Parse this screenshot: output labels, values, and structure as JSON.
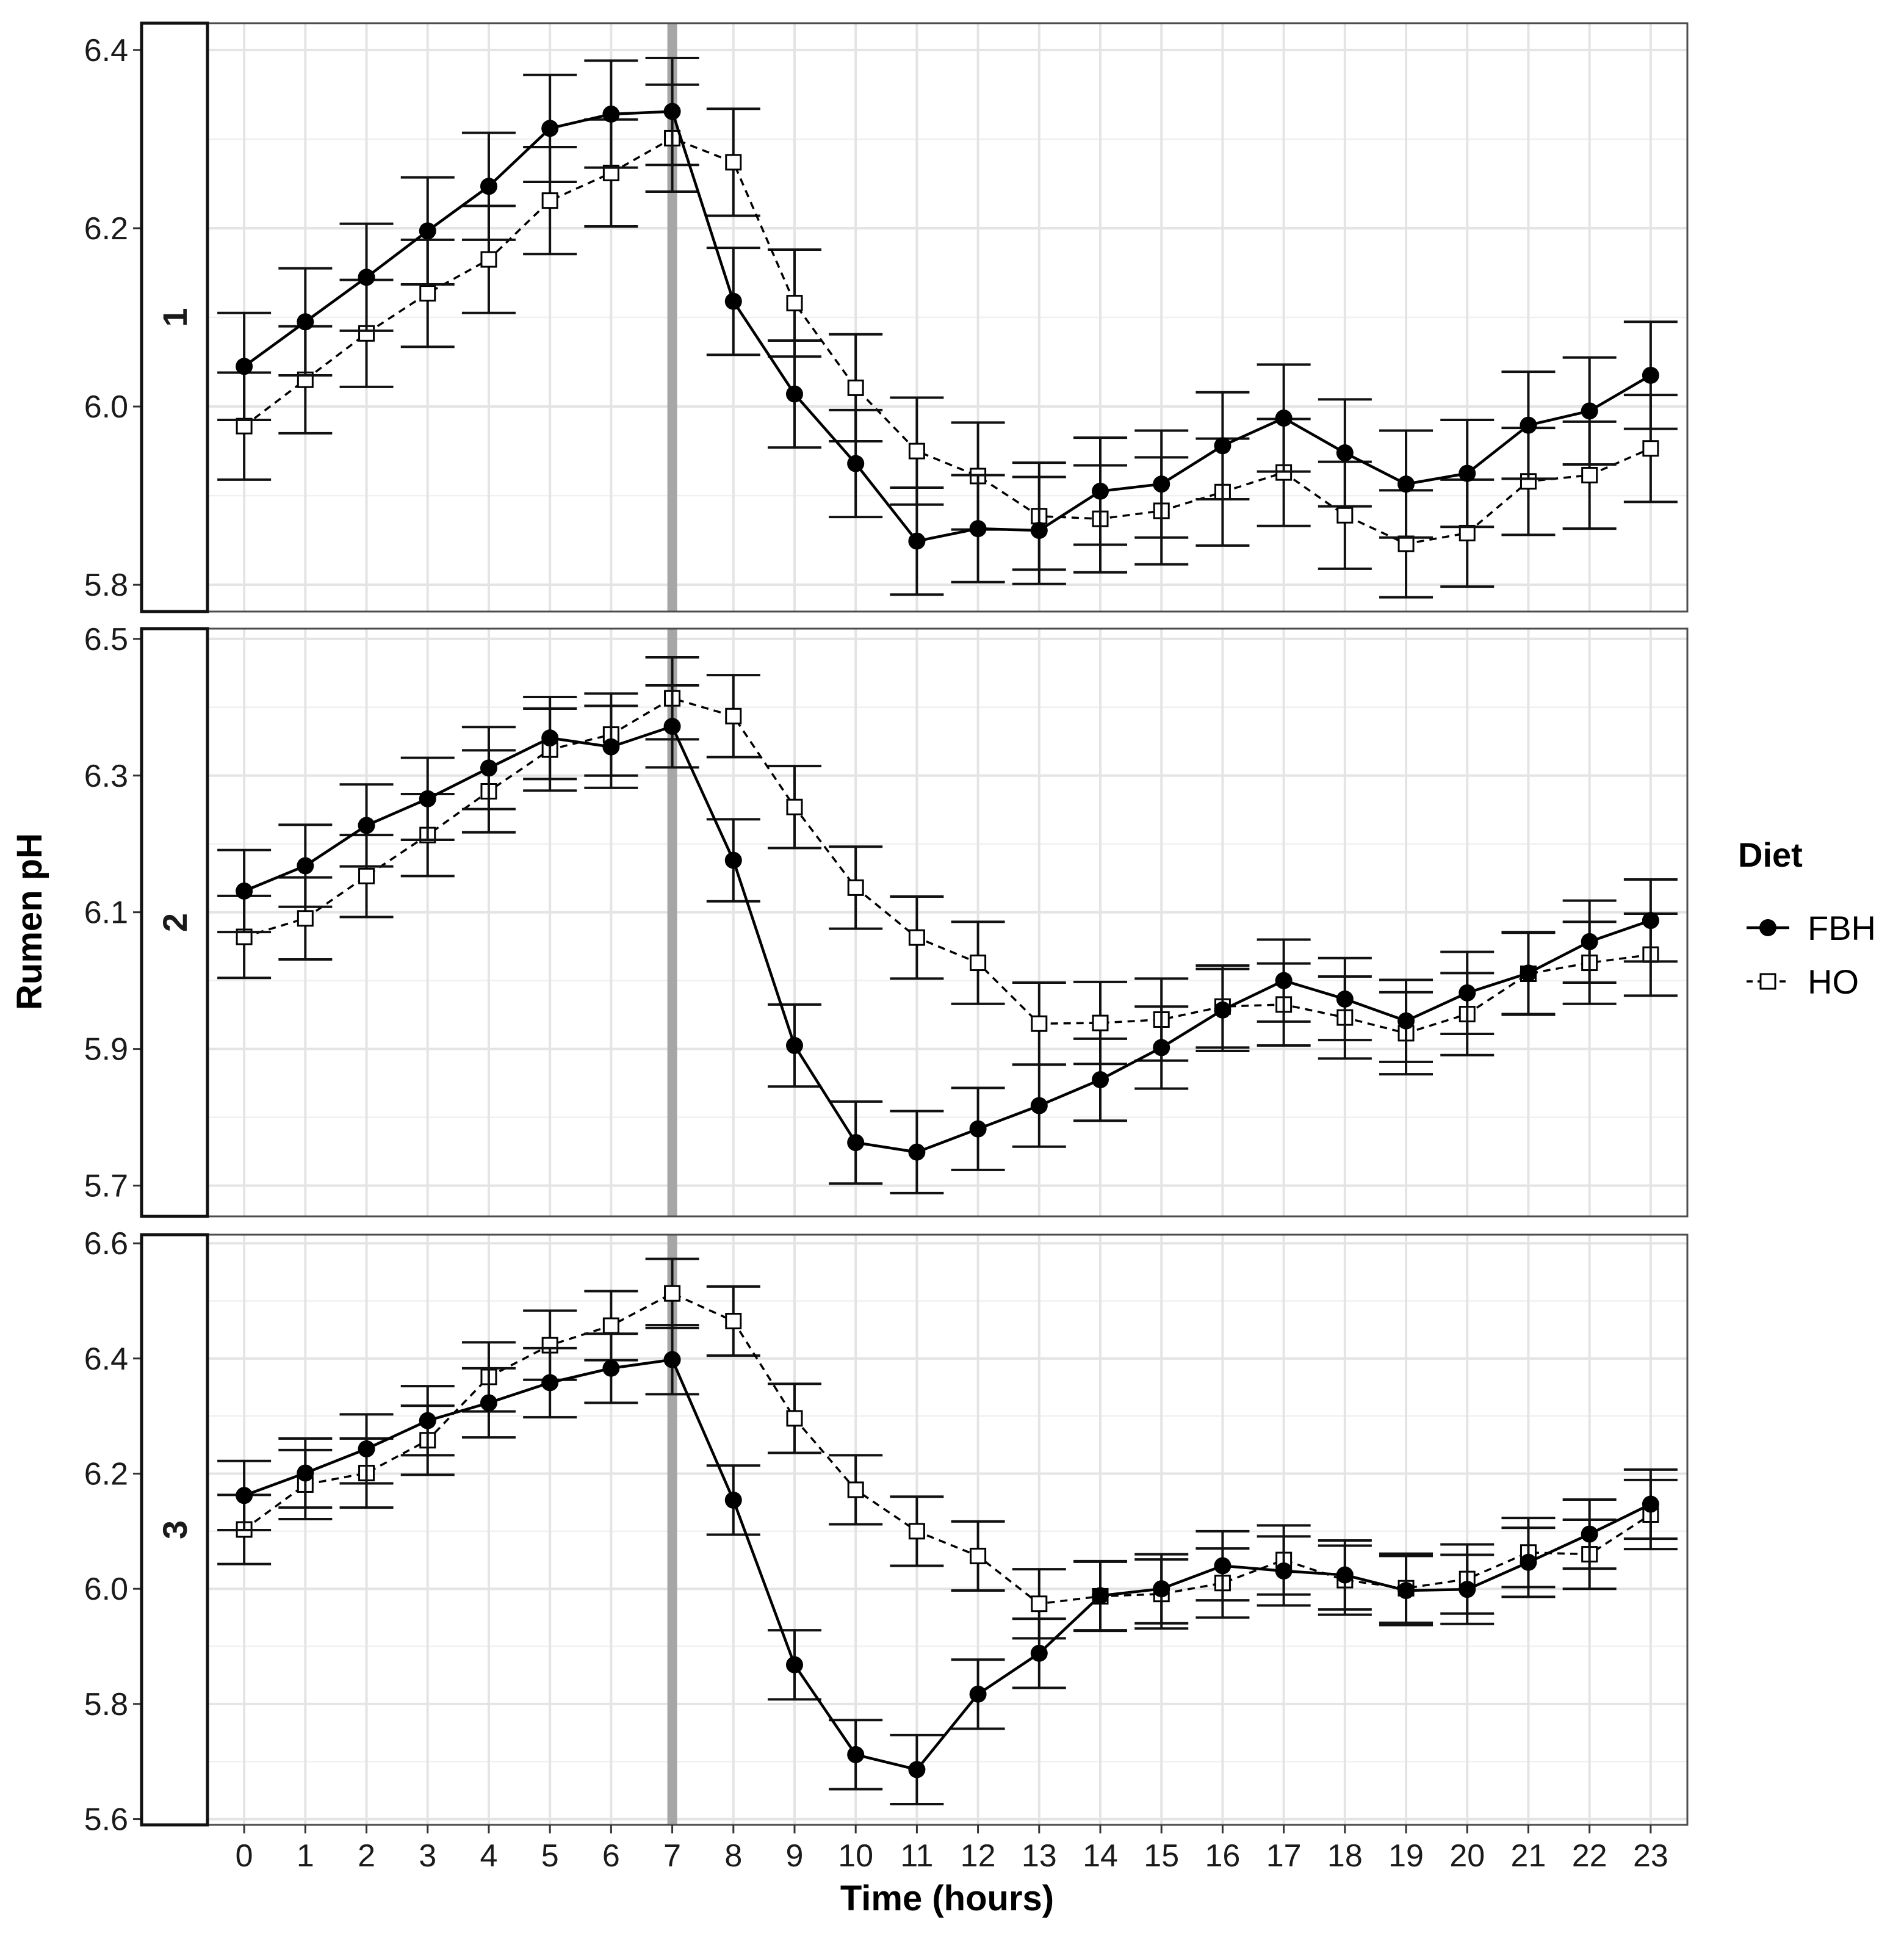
{
  "chart_data": {
    "type": "line",
    "xlabel": "Time (hours)",
    "ylabel": "Rumen pH",
    "x": [
      0,
      1,
      2,
      3,
      4,
      5,
      6,
      7,
      8,
      9,
      10,
      11,
      12,
      13,
      14,
      15,
      16,
      17,
      18,
      19,
      20,
      21,
      22,
      23
    ],
    "x_tick_labels": [
      "0",
      "1",
      "2",
      "3",
      "4",
      "5",
      "6",
      "7",
      "8",
      "9",
      "10",
      "11",
      "12",
      "13",
      "14",
      "15",
      "16",
      "17",
      "18",
      "19",
      "20",
      "21",
      "22",
      "23"
    ],
    "vertical_reference_line": 7,
    "error_bars": "mean ± SE",
    "legend": {
      "title": "Diet",
      "placement": "right",
      "entries": [
        {
          "label": "FBH",
          "line": "solid",
          "marker": "filled-circle"
        },
        {
          "label": "HO",
          "line": "dashed",
          "marker": "open-square"
        }
      ]
    },
    "panels": [
      {
        "strip_label": "1",
        "ylim": [
          5.77,
          6.43
        ],
        "y_ticks": [
          5.8,
          6.0,
          6.2,
          6.4
        ],
        "y_tick_labels": [
          "5.8",
          "6.0",
          "6.2",
          "6.4"
        ],
        "series": [
          {
            "name": "FBH",
            "se": 0.06,
            "values": [
              6.045,
              6.095,
              6.145,
              6.197,
              6.247,
              6.312,
              6.328,
              6.331,
              6.118,
              6.014,
              5.936,
              5.849,
              5.863,
              5.861,
              5.905,
              5.913,
              5.956,
              5.987,
              5.948,
              5.913,
              5.925,
              5.979,
              5.995,
              6.035
            ]
          },
          {
            "name": "HO",
            "se": 0.06,
            "values": [
              5.978,
              6.03,
              6.082,
              6.127,
              6.165,
              6.231,
              6.262,
              6.301,
              6.274,
              6.116,
              6.021,
              5.95,
              5.922,
              5.877,
              5.874,
              5.883,
              5.904,
              5.926,
              5.878,
              5.846,
              5.858,
              5.916,
              5.923,
              5.953
            ]
          }
        ]
      },
      {
        "strip_label": "2",
        "ylim": [
          5.655,
          6.515
        ],
        "y_ticks": [
          5.7,
          5.9,
          6.1,
          6.3,
          6.5
        ],
        "y_tick_labels": [
          "5.7",
          "5.9",
          "6.1",
          "6.3",
          "6.5"
        ],
        "series": [
          {
            "name": "FBH",
            "se": 0.06,
            "values": [
              6.131,
              6.168,
              6.227,
              6.266,
              6.311,
              6.355,
              6.342,
              6.372,
              6.176,
              5.905,
              5.763,
              5.749,
              5.783,
              5.817,
              5.855,
              5.902,
              5.957,
              6.0,
              5.973,
              5.941,
              5.982,
              6.011,
              6.057,
              6.088
            ]
          },
          {
            "name": "HO",
            "se": 0.06,
            "values": [
              6.064,
              6.091,
              6.153,
              6.213,
              6.277,
              6.338,
              6.36,
              6.413,
              6.387,
              6.254,
              6.136,
              6.063,
              6.026,
              5.937,
              5.938,
              5.943,
              5.962,
              5.965,
              5.946,
              5.923,
              5.951,
              6.01,
              6.026,
              6.038
            ]
          }
        ]
      },
      {
        "strip_label": "3",
        "ylim": [
          5.59,
          6.615
        ],
        "y_ticks": [
          5.6,
          5.8,
          6.0,
          6.2,
          6.4,
          6.6
        ],
        "y_tick_labels": [
          "5.6",
          "5.8",
          "6.0",
          "6.2",
          "6.4",
          "6.6"
        ],
        "series": [
          {
            "name": "FBH",
            "se": 0.06,
            "values": [
              6.162,
              6.201,
              6.243,
              6.292,
              6.323,
              6.358,
              6.383,
              6.398,
              6.154,
              5.868,
              5.712,
              5.686,
              5.817,
              5.888,
              5.988,
              6.0,
              6.04,
              6.031,
              6.024,
              5.997,
              5.999,
              6.046,
              6.095,
              6.147
            ]
          },
          {
            "name": "HO",
            "se": 0.06,
            "values": [
              6.103,
              6.181,
              6.201,
              6.258,
              6.368,
              6.423,
              6.457,
              6.513,
              6.465,
              6.296,
              6.172,
              6.1,
              6.057,
              5.974,
              5.987,
              5.991,
              6.01,
              6.05,
              6.015,
              6.001,
              6.017,
              6.063,
              6.06,
              6.129
            ]
          }
        ]
      }
    ]
  }
}
